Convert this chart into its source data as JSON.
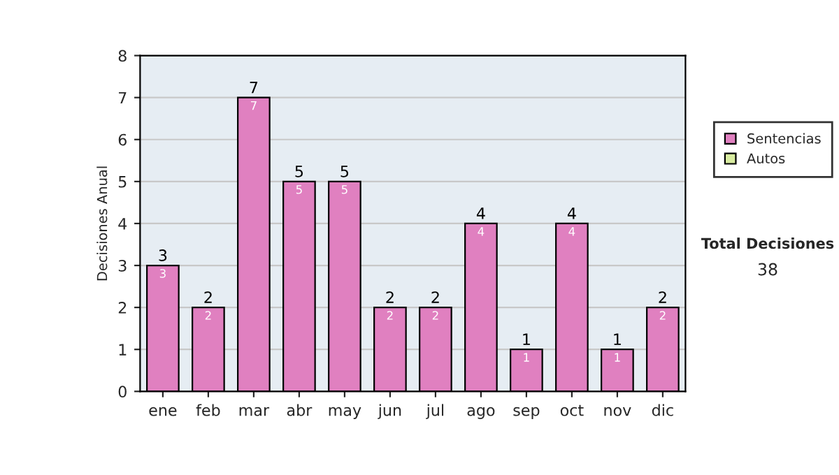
{
  "chart_data": {
    "type": "bar",
    "ylabel": "Decisiones Anual",
    "categories": [
      "ene",
      "feb",
      "mar",
      "abr",
      "may",
      "jun",
      "jul",
      "ago",
      "sep",
      "oct",
      "nov",
      "dic"
    ],
    "series": [
      {
        "name": "Sentencias",
        "color": "#e080c0",
        "values": [
          3,
          2,
          7,
          5,
          5,
          2,
          2,
          4,
          1,
          4,
          1,
          2
        ],
        "value_labels": [
          "3",
          "2",
          "7",
          "5",
          "5",
          "2",
          "2",
          "4",
          "1",
          "4",
          "1",
          "2"
        ]
      },
      {
        "name": "Autos",
        "color": "#d8eca0",
        "values": [
          0,
          0,
          0,
          0,
          0,
          0,
          0,
          0,
          0,
          0,
          0,
          0
        ]
      }
    ],
    "stacked": true,
    "totals": [
      "3",
      "2",
      "7",
      "5",
      "5",
      "2",
      "2",
      "4",
      "1",
      "4",
      "1",
      "2"
    ],
    "ylim": [
      0,
      8
    ],
    "yticks": [
      0,
      1,
      2,
      3,
      4,
      5,
      6,
      7,
      8
    ],
    "grid": "y",
    "legend": "right",
    "annotations": [
      "Total Decisiones",
      "38"
    ]
  }
}
